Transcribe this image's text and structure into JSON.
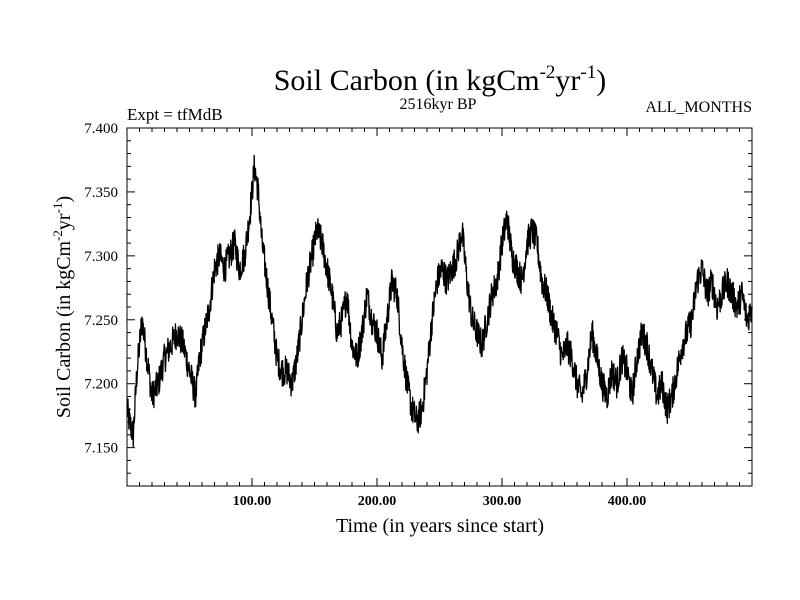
{
  "chart_data": {
    "type": "line",
    "title": "Soil Carbon (in kgCm",
    "title_sup1": "-2",
    "title_mid": "yr",
    "title_sup2": "-1",
    "title_end": ")",
    "subtitle": "2516kyr BP",
    "experiment": "Expt = tfMdB",
    "months": "ALL_MONTHS",
    "xlabel": "Time (in years since start)",
    "ylabel": "Soil Carbon (in kgCm",
    "ylabel_sup1": "-2",
    "ylabel_mid": "yr",
    "ylabel_sup2": "-1",
    "ylabel_end": ")",
    "xlim": [
      0,
      500
    ],
    "ylim": [
      7.12,
      7.4
    ],
    "x_ticks": [
      100,
      200,
      300,
      400
    ],
    "x_tick_labels": [
      "100.00",
      "200.00",
      "300.00",
      "400.00"
    ],
    "y_ticks": [
      7.15,
      7.2,
      7.25,
      7.3,
      7.35,
      7.4
    ],
    "y_tick_labels": [
      "7.150",
      "7.200",
      "7.250",
      "7.300",
      "7.350",
      "7.400"
    ],
    "grid": false,
    "series": [
      {
        "name": "Soil Carbon",
        "x": [
          0,
          2,
          5,
          8,
          12,
          16,
          20,
          25,
          30,
          35,
          40,
          45,
          50,
          55,
          58,
          62,
          66,
          70,
          74,
          78,
          82,
          86,
          90,
          94,
          98,
          102,
          105,
          108,
          112,
          116,
          120,
          124,
          128,
          132,
          136,
          140,
          144,
          148,
          152,
          156,
          160,
          164,
          168,
          172,
          176,
          180,
          184,
          188,
          192,
          196,
          200,
          204,
          208,
          212,
          216,
          220,
          224,
          228,
          232,
          236,
          240,
          244,
          248,
          252,
          256,
          260,
          264,
          268,
          272,
          276,
          280,
          284,
          288,
          292,
          296,
          300,
          304,
          308,
          312,
          316,
          320,
          324,
          328,
          332,
          336,
          340,
          344,
          348,
          352,
          356,
          360,
          364,
          368,
          372,
          376,
          380,
          384,
          388,
          392,
          396,
          400,
          404,
          408,
          412,
          416,
          420,
          424,
          428,
          432,
          436,
          440,
          444,
          448,
          452,
          456,
          460,
          464,
          468,
          472,
          476,
          480,
          484,
          488,
          492,
          496,
          500
        ],
        "values": [
          7.18,
          7.17,
          7.16,
          7.21,
          7.25,
          7.22,
          7.19,
          7.2,
          7.22,
          7.23,
          7.24,
          7.23,
          7.21,
          7.19,
          7.22,
          7.24,
          7.26,
          7.29,
          7.3,
          7.29,
          7.3,
          7.31,
          7.29,
          7.3,
          7.33,
          7.37,
          7.35,
          7.31,
          7.28,
          7.25,
          7.22,
          7.21,
          7.21,
          7.2,
          7.22,
          7.25,
          7.28,
          7.3,
          7.32,
          7.31,
          7.29,
          7.27,
          7.24,
          7.25,
          7.27,
          7.23,
          7.22,
          7.24,
          7.27,
          7.25,
          7.24,
          7.22,
          7.25,
          7.28,
          7.27,
          7.23,
          7.2,
          7.18,
          7.17,
          7.18,
          7.21,
          7.25,
          7.28,
          7.29,
          7.28,
          7.29,
          7.3,
          7.32,
          7.28,
          7.25,
          7.24,
          7.23,
          7.25,
          7.27,
          7.28,
          7.31,
          7.33,
          7.3,
          7.29,
          7.28,
          7.31,
          7.32,
          7.31,
          7.28,
          7.27,
          7.25,
          7.24,
          7.22,
          7.23,
          7.22,
          7.2,
          7.19,
          7.21,
          7.24,
          7.22,
          7.2,
          7.19,
          7.21,
          7.2,
          7.22,
          7.21,
          7.19,
          7.22,
          7.24,
          7.23,
          7.21,
          7.19,
          7.2,
          7.18,
          7.19,
          7.21,
          7.23,
          7.24,
          7.25,
          7.28,
          7.29,
          7.27,
          7.28,
          7.26,
          7.27,
          7.28,
          7.27,
          7.26,
          7.27,
          7.25,
          7.26
        ]
      }
    ]
  },
  "colors": {
    "background": "#ffffff",
    "line": "#000000",
    "axis": "#000000"
  }
}
